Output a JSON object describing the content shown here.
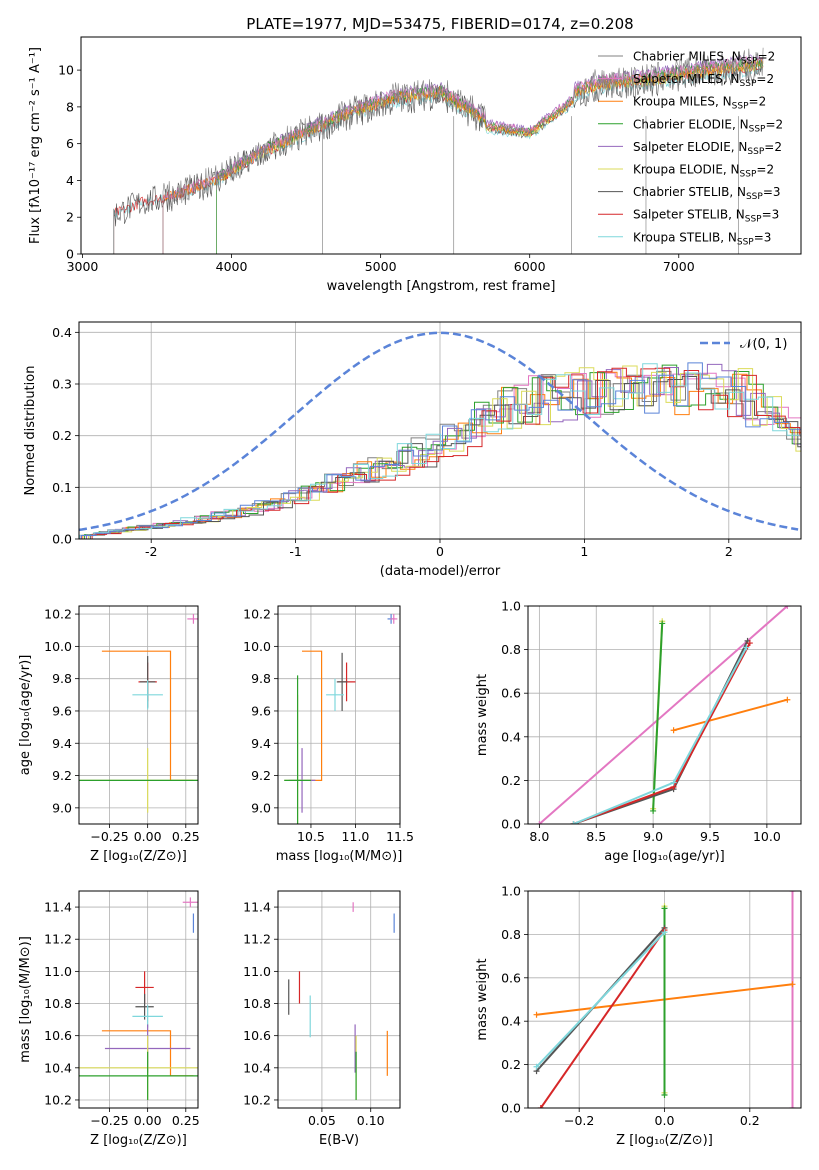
{
  "figure": {
    "title": "PLATE=1977, MJD=53475, FIBERID=0174, z=0.208"
  },
  "chart_data": [
    {
      "id": "spectrum",
      "type": "line",
      "xlabel": "wavelength [Angstrom, rest frame]",
      "ylabel": "Flux [fλ10⁻¹⁷ erg cm⁻² s⁻¹ A⁻¹]",
      "xlim": [
        2990,
        7820
      ],
      "ylim": [
        0,
        11.8
      ],
      "xticks": [
        3000,
        4000,
        5000,
        6000,
        7000
      ],
      "yticks": [
        0,
        2,
        4,
        6,
        8,
        10
      ],
      "grid": false,
      "legend_position": "top-right",
      "series": [
        {
          "name": "Chabrier MILES, N_SSP=2",
          "color": "#808080",
          "start": 3540,
          "scale": 1.0
        },
        {
          "name": "Salpeter MILES, N_SSP=2",
          "color": "#e377c2",
          "start": 3540,
          "scale": 1.01
        },
        {
          "name": "Kroupa MILES, N_SSP=2",
          "color": "#ff7f0e",
          "start": 3540,
          "scale": 0.99
        },
        {
          "name": "Chabrier ELODIE, N_SSP=2",
          "color": "#2ca02c",
          "start": 3900,
          "scale": 1.0
        },
        {
          "name": "Salpeter ELODIE, N_SSP=2",
          "color": "#9467bd",
          "start": 3900,
          "scale": 1.02
        },
        {
          "name": "Kroupa ELODIE, N_SSP=2",
          "color": "#dbdb5a",
          "start": 3900,
          "scale": 0.98
        },
        {
          "name": "Chabrier STELIB, N_SSP=3",
          "color": "#555555",
          "start": 3210,
          "scale": 0.97
        },
        {
          "name": "Salpeter STELIB, N_SSP=3",
          "color": "#d62728",
          "start": 3210,
          "scale": 0.98
        },
        {
          "name": "Kroupa STELIB, N_SSP=3",
          "color": "#7fd7dc",
          "start": 3210,
          "scale": 0.96
        }
      ],
      "continuum_key_points": {
        "x": [
          3210,
          3400,
          3600,
          3900,
          4200,
          4500,
          4800,
          5100,
          5400,
          5700,
          6000,
          6300,
          6500,
          6800,
          7100,
          7400,
          7600
        ],
        "y": [
          2.2,
          2.9,
          3.2,
          4.1,
          5.6,
          6.7,
          7.8,
          8.6,
          8.9,
          7.4,
          7.0,
          8.9,
          9.4,
          9.6,
          10.0,
          10.3,
          10.5
        ]
      }
    },
    {
      "id": "residuals",
      "type": "histogram",
      "xlabel": "(data-model)/error",
      "ylabel": "Normed distribution",
      "xlim": [
        -2.5,
        2.5
      ],
      "ylim": [
        0,
        0.42
      ],
      "xticks": [
        -2,
        -1,
        0,
        1,
        2
      ],
      "yticks": [
        0.0,
        0.1,
        0.2,
        0.3,
        0.4
      ],
      "grid": true,
      "legend_position": "top-right",
      "reference_curve": {
        "name": "𝒩(0, 1)",
        "color": "#5b84d8",
        "style": "dashed"
      },
      "bin_centers": [
        -2.45,
        -2.35,
        -2.25,
        -2.15,
        -2.05,
        -1.95,
        -1.85,
        -1.75,
        -1.65,
        -1.55,
        -1.45,
        -1.35,
        -1.25,
        -1.15,
        -1.05,
        -0.95,
        -0.85,
        -0.75,
        -0.65,
        -0.55,
        -0.45,
        -0.35,
        -0.25,
        -0.15,
        -0.05,
        0.05,
        0.15,
        0.25,
        0.35,
        0.45,
        0.55,
        0.65,
        0.75,
        0.85,
        0.95,
        1.05,
        1.15,
        1.25,
        1.35,
        1.45,
        1.55,
        1.65,
        1.75,
        1.85,
        1.95,
        2.05,
        2.15,
        2.25,
        2.35,
        2.45
      ],
      "envelope": [
        0.008,
        0.012,
        0.016,
        0.02,
        0.023,
        0.026,
        0.03,
        0.035,
        0.04,
        0.045,
        0.05,
        0.056,
        0.063,
        0.072,
        0.08,
        0.088,
        0.097,
        0.107,
        0.117,
        0.127,
        0.138,
        0.148,
        0.158,
        0.168,
        0.18,
        0.195,
        0.21,
        0.225,
        0.24,
        0.252,
        0.262,
        0.27,
        0.276,
        0.28,
        0.283,
        0.285,
        0.286,
        0.287,
        0.288,
        0.289,
        0.29,
        0.29,
        0.29,
        0.288,
        0.285,
        0.28,
        0.26,
        0.24,
        0.22,
        0.205
      ],
      "series_colors": [
        "#808080",
        "#e377c2",
        "#ff7f0e",
        "#2ca02c",
        "#9467bd",
        "#dbdb5a",
        "#555555",
        "#d62728",
        "#7fd7dc",
        "#5b84d8"
      ]
    },
    {
      "id": "Z-vs-age",
      "type": "errorbar",
      "xlabel": "Z [log₁₀(Z/Z⊙)]",
      "ylabel": "age  [log₁₀(age/yr)]",
      "xlim": [
        -0.45,
        0.33
      ],
      "ylim": [
        8.9,
        10.25
      ],
      "xticks": [
        -0.25,
        0.0,
        0.25
      ],
      "xticklabels": [
        "−0.25",
        "0.00",
        "0.25"
      ],
      "yticks": [
        9.0,
        9.2,
        9.4,
        9.6,
        9.8,
        10.0,
        10.2
      ],
      "grid": true,
      "points": [
        {
          "x": 0.0,
          "y": 9.78,
          "xerr": 0.06,
          "yerr": 0.12,
          "color": "#d62728"
        },
        {
          "x": 0.0,
          "y": 9.78,
          "xerr": 0.05,
          "yerr": 0.16,
          "color": "#555555"
        },
        {
          "x": 0.0,
          "y": 9.7,
          "xerr": 0.1,
          "yerr": 0.09,
          "color": "#7fd7dc"
        },
        {
          "x": 0.0,
          "y": 9.17,
          "xerr": 0.45,
          "yerr": 0.2,
          "color": "#dbdb5a"
        },
        {
          "x": 0.0,
          "y": 9.17,
          "xerr": 0.45,
          "yerr": 0.0,
          "color": "#2ca02c"
        },
        {
          "x": 0.3,
          "y": 10.17,
          "xerr": 0.04,
          "yerr": 0.03,
          "color": "#e377c2"
        }
      ],
      "step_line": {
        "color": "#ff7f0e",
        "points": [
          [
            -0.3,
            9.97
          ],
          [
            0.15,
            9.97
          ],
          [
            0.15,
            9.17
          ],
          [
            0.3,
            9.17
          ]
        ]
      }
    },
    {
      "id": "mass-vs-age",
      "type": "errorbar",
      "xlabel": "mass [log₁₀(M/M⊙)]",
      "ylabel": "",
      "xlim": [
        10.13,
        11.5
      ],
      "ylim": [
        8.9,
        10.25
      ],
      "xticks": [
        10.5,
        11.0,
        11.5
      ],
      "xticklabels": [
        "10.5",
        "11.0",
        "11.5"
      ],
      "yticks": [
        9.0,
        9.2,
        9.4,
        9.6,
        9.8,
        10.0,
        10.2
      ],
      "grid": true,
      "points": [
        {
          "x": 10.9,
          "y": 9.78,
          "xerr": 0.1,
          "yerr": 0.12,
          "color": "#d62728"
        },
        {
          "x": 10.85,
          "y": 9.78,
          "xerr": 0.06,
          "yerr": 0.18,
          "color": "#555555"
        },
        {
          "x": 10.77,
          "y": 9.7,
          "xerr": 0.1,
          "yerr": 0.1,
          "color": "#7fd7dc"
        },
        {
          "x": 10.4,
          "y": 9.17,
          "xerr": 0.15,
          "yerr": 0.2,
          "color": "#9467bd"
        },
        {
          "x": 10.35,
          "y": 9.17,
          "xerr": 0.15,
          "yerr": 0.53,
          "color": "#dbdb5a"
        },
        {
          "x": 10.35,
          "y": 9.17,
          "xerr": 0.15,
          "yerr": 0.65,
          "color": "#2ca02c"
        },
        {
          "x": 11.4,
          "y": 10.17,
          "xerr": 0.04,
          "yerr": 0.03,
          "color": "#5b84d8"
        },
        {
          "x": 11.43,
          "y": 10.17,
          "xerr": 0.04,
          "yerr": 0.03,
          "color": "#e377c2"
        }
      ],
      "step_line": {
        "color": "#ff7f0e",
        "points": [
          [
            10.4,
            9.97
          ],
          [
            10.62,
            9.97
          ],
          [
            10.62,
            9.17
          ],
          [
            10.5,
            9.17
          ]
        ]
      }
    },
    {
      "id": "age-vs-mass-weight",
      "type": "line",
      "xlabel": "age  [log₁₀(age/yr)]",
      "ylabel": "mass weight",
      "xlim": [
        7.9,
        10.3
      ],
      "ylim": [
        0,
        1
      ],
      "xticks": [
        8.0,
        8.5,
        9.0,
        9.5,
        10.0
      ],
      "xticklabels": [
        "8.0",
        "8.5",
        "9.0",
        "9.5",
        "10.0"
      ],
      "yticks": [
        0.0,
        0.2,
        0.4,
        0.6,
        0.8,
        1.0
      ],
      "grid": true,
      "series": [
        {
          "color": "#e377c2",
          "x": [
            8.0,
            10.18
          ],
          "y": [
            0.0,
            1.0
          ]
        },
        {
          "color": "#ff7f0e",
          "x": [
            9.18,
            10.18
          ],
          "y": [
            0.43,
            0.57
          ]
        },
        {
          "color": "#dbdb5a",
          "x": [
            9.0,
            9.08
          ],
          "y": [
            0.07,
            0.93
          ]
        },
        {
          "color": "#2ca02c",
          "x": [
            9.0,
            9.08
          ],
          "y": [
            0.06,
            0.92
          ]
        },
        {
          "color": "#555555",
          "x": [
            8.3,
            9.18,
            9.83
          ],
          "y": [
            0.0,
            0.16,
            0.84
          ]
        },
        {
          "color": "#d62728",
          "x": [
            8.3,
            9.18,
            9.85
          ],
          "y": [
            0.0,
            0.17,
            0.83
          ]
        },
        {
          "color": "#7fd7dc",
          "x": [
            8.3,
            9.18,
            9.82
          ],
          "y": [
            0.0,
            0.19,
            0.81
          ]
        }
      ]
    },
    {
      "id": "Z-vs-mass",
      "type": "errorbar",
      "xlabel": "Z [log₁₀(Z/Z⊙)]",
      "ylabel": "mass [log₁₀(M/M⊙)]",
      "xlim": [
        -0.45,
        0.33
      ],
      "ylim": [
        10.15,
        11.5
      ],
      "xticks": [
        -0.25,
        0.0,
        0.25
      ],
      "xticklabels": [
        "−0.25",
        "0.00",
        "0.25"
      ],
      "yticks": [
        10.2,
        10.4,
        10.6,
        10.8,
        11.0,
        11.2,
        11.4
      ],
      "grid": true,
      "points": [
        {
          "x": -0.02,
          "y": 10.9,
          "xerr": 0.06,
          "yerr": 0.1,
          "color": "#d62728"
        },
        {
          "x": -0.02,
          "y": 10.78,
          "xerr": 0.06,
          "yerr": 0.08,
          "color": "#555555"
        },
        {
          "x": 0.0,
          "y": 10.72,
          "xerr": 0.1,
          "yerr": 0.07,
          "color": "#7fd7dc"
        },
        {
          "x": 0.0,
          "y": 10.52,
          "xerr": 0.28,
          "yerr": 0.15,
          "color": "#9467bd"
        },
        {
          "x": 0.0,
          "y": 10.4,
          "xerr": 0.45,
          "yerr": 0.2,
          "color": "#dbdb5a"
        },
        {
          "x": 0.0,
          "y": 10.35,
          "xerr": 0.45,
          "yerr": 0.15,
          "color": "#2ca02c"
        },
        {
          "x": 0.3,
          "y": 11.3,
          "xerr": 0.0,
          "yerr": 0.06,
          "color": "#5b84d8"
        },
        {
          "x": 0.28,
          "y": 11.43,
          "xerr": 0.05,
          "yerr": 0.03,
          "color": "#e377c2"
        }
      ],
      "step_line": {
        "color": "#ff7f0e",
        "points": [
          [
            -0.3,
            10.63
          ],
          [
            0.15,
            10.63
          ],
          [
            0.15,
            10.35
          ],
          [
            0.3,
            10.35
          ]
        ]
      }
    },
    {
      "id": "ebv-vs-mass",
      "type": "errorbar",
      "xlabel": "E(B-V)",
      "ylabel": "",
      "xlim": [
        0.005,
        0.13
      ],
      "ylim": [
        10.15,
        11.5
      ],
      "xticks": [
        0.05,
        0.1
      ],
      "xticklabels": [
        "0.05",
        "0.10"
      ],
      "yticks": [
        10.2,
        10.4,
        10.6,
        10.8,
        11.0,
        11.2,
        11.4
      ],
      "grid": true,
      "points": [
        {
          "x": 0.016,
          "y": 10.84,
          "xerr": 0.0,
          "yerr": 0.11,
          "color": "#555555"
        },
        {
          "x": 0.027,
          "y": 10.9,
          "xerr": 0.0,
          "yerr": 0.1,
          "color": "#d62728"
        },
        {
          "x": 0.038,
          "y": 10.72,
          "xerr": 0.0,
          "yerr": 0.13,
          "color": "#7fd7dc"
        },
        {
          "x": 0.082,
          "y": 11.4,
          "xerr": 0.0,
          "yerr": 0.03,
          "color": "#e377c2"
        },
        {
          "x": 0.084,
          "y": 10.52,
          "xerr": 0.0,
          "yerr": 0.15,
          "color": "#9467bd"
        },
        {
          "x": 0.085,
          "y": 10.4,
          "xerr": 0.0,
          "yerr": 0.2,
          "color": "#dbdb5a"
        },
        {
          "x": 0.085,
          "y": 10.35,
          "xerr": 0.0,
          "yerr": 0.15,
          "color": "#2ca02c"
        },
        {
          "x": 0.117,
          "y": 10.49,
          "xerr": 0.0,
          "yerr": 0.14,
          "color": "#ff7f0e"
        },
        {
          "x": 0.124,
          "y": 11.3,
          "xerr": 0.0,
          "yerr": 0.06,
          "color": "#5b84d8"
        }
      ]
    },
    {
      "id": "Z-vs-mass-weight",
      "type": "line",
      "xlabel": "Z [log₁₀(Z/Z⊙)]",
      "ylabel": "mass weight",
      "xlim": [
        -0.32,
        0.32
      ],
      "ylim": [
        0,
        1
      ],
      "xticks": [
        -0.2,
        0.0,
        0.2
      ],
      "xticklabels": [
        "−0.2",
        "0.0",
        "0.2"
      ],
      "yticks": [
        0.0,
        0.2,
        0.4,
        0.6,
        0.8,
        1.0
      ],
      "grid": true,
      "series": [
        {
          "color": "#e377c2",
          "x": [
            0.3,
            0.3
          ],
          "y": [
            0.0,
            1.0
          ]
        },
        {
          "color": "#ff7f0e",
          "x": [
            -0.3,
            0.3
          ],
          "y": [
            0.43,
            0.57
          ]
        },
        {
          "color": "#dbdb5a",
          "x": [
            0.0,
            0.0
          ],
          "y": [
            0.07,
            0.93
          ]
        },
        {
          "color": "#2ca02c",
          "x": [
            0.0,
            0.0
          ],
          "y": [
            0.06,
            0.92
          ]
        },
        {
          "color": "#555555",
          "x": [
            -0.3,
            0.0
          ],
          "y": [
            0.17,
            0.83
          ]
        },
        {
          "color": "#d62728",
          "x": [
            -0.29,
            0.0
          ],
          "y": [
            0.0,
            0.82
          ]
        },
        {
          "color": "#7fd7dc",
          "x": [
            -0.3,
            0.0
          ],
          "y": [
            0.19,
            0.81
          ]
        }
      ]
    }
  ]
}
